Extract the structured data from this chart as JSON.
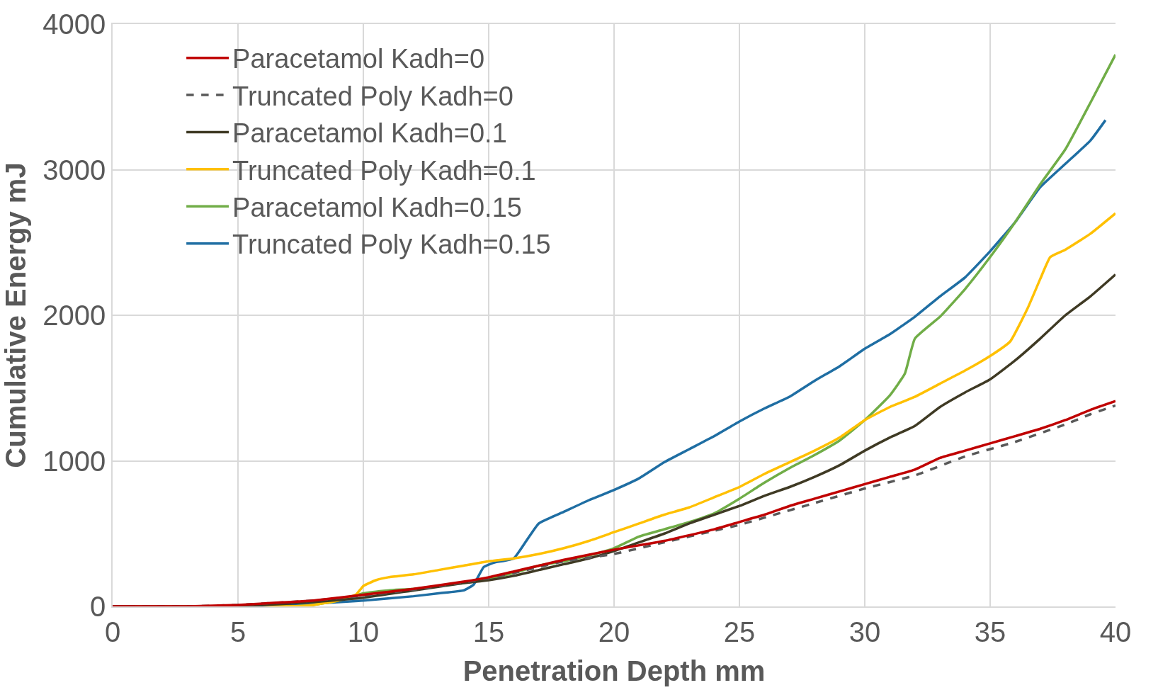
{
  "chart_data": {
    "type": "line",
    "xlabel": "Penetration Depth mm",
    "ylabel": "Cumulative Energy mJ",
    "xlim": [
      0,
      40
    ],
    "ylim": [
      0,
      4000
    ],
    "xticks": [
      0,
      5,
      10,
      15,
      20,
      25,
      30,
      35,
      40
    ],
    "yticks": [
      0,
      1000,
      2000,
      3000,
      4000
    ],
    "grid": true,
    "legend": "top left",
    "marker": "none",
    "series": [
      {
        "name": "Paracetamol Kadh=0",
        "color": "#c00000",
        "line_style": "solid",
        "x": [
          0,
          3,
          5,
          6,
          8,
          10,
          12,
          14,
          15,
          16,
          17,
          18,
          20,
          22,
          24,
          25,
          26,
          27,
          28,
          29,
          30,
          31,
          32,
          33,
          34,
          35,
          36,
          37,
          38,
          39,
          40
        ],
        "values": [
          0,
          0,
          10,
          20,
          40,
          80,
          120,
          170,
          200,
          240,
          280,
          320,
          390,
          450,
          530,
          580,
          630,
          690,
          740,
          790,
          840,
          890,
          940,
          1020,
          1070,
          1120,
          1170,
          1220,
          1280,
          1350,
          1410
        ]
      },
      {
        "name": "Truncated Poly Kadh=0",
        "color": "#595959",
        "line_style": "dashed",
        "x": [
          0,
          3,
          5,
          6,
          8,
          10,
          12,
          14,
          15,
          16,
          17,
          18,
          20,
          22,
          24,
          25,
          26,
          28,
          30,
          32,
          34,
          36,
          38,
          39,
          40
        ],
        "values": [
          0,
          0,
          10,
          20,
          40,
          75,
          115,
          165,
          195,
          230,
          270,
          310,
          360,
          440,
          520,
          560,
          610,
          710,
          810,
          900,
          1030,
          1130,
          1250,
          1320,
          1380
        ]
      },
      {
        "name": "Paracetamol Kadh=0.1",
        "color": "#3f3a24",
        "line_style": "solid",
        "x": [
          0,
          5,
          8,
          10,
          12,
          14,
          15,
          16,
          17,
          18,
          19,
          20,
          21,
          22,
          23,
          24,
          25,
          26,
          27,
          28,
          29,
          30,
          31,
          32,
          33,
          34,
          35,
          36,
          37,
          38,
          39,
          40
        ],
        "values": [
          0,
          0,
          30,
          60,
          110,
          160,
          180,
          210,
          250,
          290,
          330,
          380,
          440,
          500,
          570,
          630,
          690,
          760,
          820,
          890,
          970,
          1070,
          1160,
          1240,
          1370,
          1470,
          1560,
          1690,
          1840,
          2000,
          2130,
          2280
        ]
      },
      {
        "name": "Truncated Poly Kadh=0.1",
        "color": "#ffc000",
        "line_style": "solid",
        "x": [
          0,
          7,
          8,
          9,
          9.7,
          10,
          10.5,
          11,
          12,
          13,
          14,
          15,
          16,
          17,
          18,
          19,
          20,
          21,
          22,
          23,
          24,
          25,
          26,
          27,
          28,
          29,
          30,
          31,
          32,
          33,
          34,
          35,
          35.8,
          36.5,
          37,
          37.4,
          38,
          39,
          40
        ],
        "values": [
          0,
          0,
          10,
          40,
          80,
          140,
          180,
          200,
          220,
          250,
          280,
          310,
          330,
          360,
          400,
          450,
          510,
          570,
          630,
          680,
          750,
          820,
          910,
          990,
          1070,
          1160,
          1280,
          1370,
          1440,
          1530,
          1620,
          1720,
          1820,
          2050,
          2250,
          2400,
          2450,
          2560,
          2700
        ]
      },
      {
        "name": "Paracetamol Kadh=0.15",
        "color": "#70ad47",
        "line_style": "solid",
        "x": [
          0,
          7,
          8,
          9,
          10,
          11,
          12,
          13,
          14,
          15,
          16,
          17,
          18,
          19,
          20,
          21,
          22,
          23,
          24,
          25,
          26,
          27,
          28,
          29,
          30,
          31,
          31.6,
          32,
          33,
          34,
          35,
          36,
          37,
          38,
          39,
          40
        ],
        "values": [
          0,
          0,
          10,
          40,
          90,
          110,
          120,
          140,
          160,
          190,
          230,
          280,
          310,
          350,
          400,
          480,
          530,
          580,
          640,
          740,
          850,
          950,
          1040,
          1140,
          1280,
          1450,
          1600,
          1840,
          1990,
          2180,
          2400,
          2640,
          2900,
          3140,
          3460,
          3790
        ]
      },
      {
        "name": "Truncated Poly Kadh=0.15",
        "color": "#1f6ea3",
        "line_style": "solid",
        "x": [
          0,
          6,
          8,
          10,
          12,
          13,
          14,
          14.4,
          14.8,
          15.2,
          16,
          16.5,
          17,
          18,
          19,
          20,
          21,
          22,
          23,
          24,
          25,
          26,
          27,
          28,
          29,
          30,
          31,
          32,
          33,
          34,
          35,
          36,
          37,
          38,
          39,
          39.6
        ],
        "values": [
          0,
          0,
          20,
          40,
          70,
          90,
          110,
          150,
          270,
          300,
          330,
          450,
          570,
          650,
          730,
          800,
          880,
          990,
          1080,
          1170,
          1270,
          1360,
          1440,
          1550,
          1650,
          1770,
          1870,
          1990,
          2130,
          2260,
          2440,
          2640,
          2880,
          3040,
          3200,
          3340
        ]
      }
    ]
  }
}
